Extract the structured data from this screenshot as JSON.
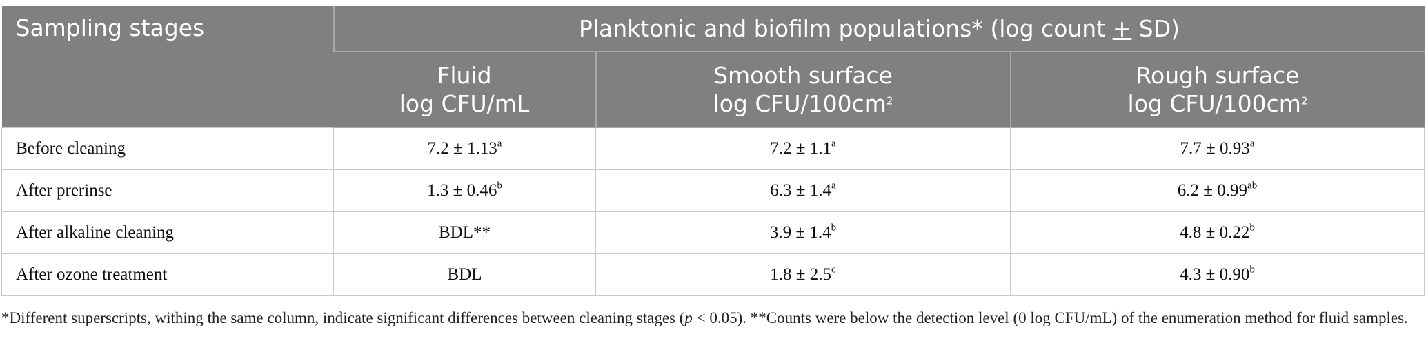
{
  "table": {
    "header": {
      "stage_label": "Sampling stages",
      "group_label_pre": "Planktonic and biofilm populations* (log count ",
      "group_label_pm": "+",
      "group_label_post": " SD)",
      "columns": [
        {
          "line1": "Fluid",
          "line2": "log CFU/mL",
          "sup": ""
        },
        {
          "line1": "Smooth surface",
          "line2": "log CFU/100cm",
          "sup": "2"
        },
        {
          "line1": "Rough surface",
          "line2": "log CFU/100cm",
          "sup": "2"
        }
      ]
    },
    "rows": [
      {
        "stage": "Before cleaning",
        "cells": [
          {
            "v": "7.2 ± 1.13",
            "s": "a"
          },
          {
            "v": "7.2 ± 1.1",
            "s": "a"
          },
          {
            "v": "7.7 ± 0.93",
            "s": "a"
          }
        ]
      },
      {
        "stage": "After prerinse",
        "cells": [
          {
            "v": "1.3 ± 0.46",
            "s": "b"
          },
          {
            "v": "6.3 ± 1.4",
            "s": "a"
          },
          {
            "v": "6.2 ± 0.99",
            "s": "ab"
          }
        ]
      },
      {
        "stage": "After alkaline cleaning",
        "cells": [
          {
            "v": "BDL**",
            "s": ""
          },
          {
            "v": "3.9 ± 1.4",
            "s": "b"
          },
          {
            "v": "4.8 ± 0.22",
            "s": "b"
          }
        ]
      },
      {
        "stage": "After ozone treatment",
        "cells": [
          {
            "v": "BDL",
            "s": ""
          },
          {
            "v": "1.8 ± 2.5",
            "s": "c"
          },
          {
            "v": "4.3 ± 0.90",
            "s": "b"
          }
        ]
      }
    ]
  },
  "footnote": {
    "part1": "*Different superscripts, withing the same column, indicate significant differences between cleaning stages (",
    "p": "p",
    "part2": " < 0.05). **Counts were below the detection level (0 log CFU/mL) of the enumeration method for fluid samples."
  }
}
